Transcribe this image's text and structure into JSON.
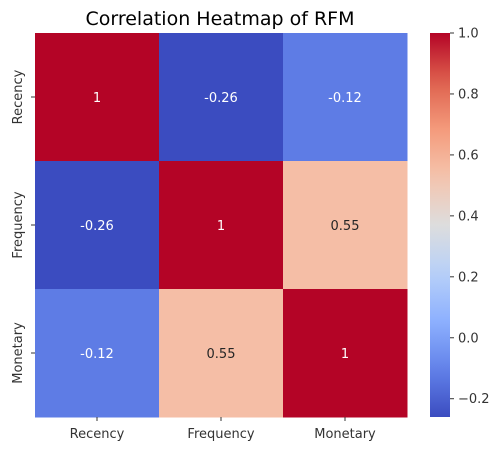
{
  "chart_data": {
    "type": "heatmap",
    "title": "Correlation Heatmap of RFM",
    "xlabel": "",
    "ylabel": "",
    "x_categories": [
      "Recency",
      "Frequency",
      "Monetary"
    ],
    "y_categories": [
      "Recency",
      "Frequency",
      "Monetary"
    ],
    "values": [
      [
        1,
        -0.26,
        -0.12
      ],
      [
        -0.26,
        1,
        0.55
      ],
      [
        -0.12,
        0.55,
        1
      ]
    ],
    "annotations": [
      [
        "1",
        "-0.26",
        "-0.12"
      ],
      [
        "-0.26",
        "1",
        "0.55"
      ],
      [
        "-0.12",
        "0.55",
        "1"
      ]
    ],
    "colormap": "coolwarm",
    "vmin": -0.26,
    "vmax": 1.0,
    "colorbar": {
      "ticks": [
        1.0,
        0.8,
        0.6,
        0.4,
        0.2,
        0.0,
        -0.2
      ],
      "tick_labels": [
        "1.0",
        "0.8",
        "0.6",
        "0.4",
        "0.2",
        "0.0",
        "−0.2"
      ]
    },
    "grid": false
  }
}
